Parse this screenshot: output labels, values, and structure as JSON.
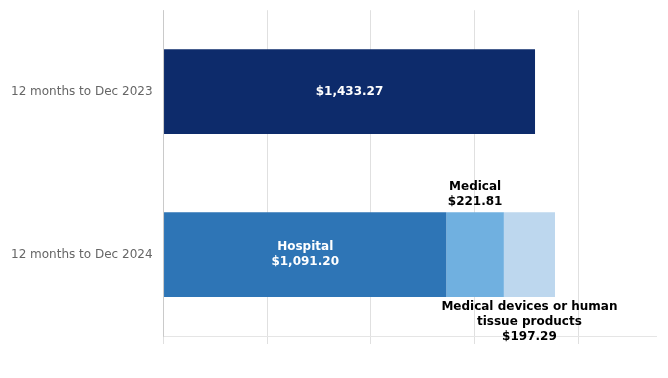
{
  "chart_data": {
    "type": "bar",
    "orientation": "horizontal",
    "stacked": true,
    "categories": [
      "12 months to Dec 2024",
      "12 months to Dec 2023"
    ],
    "series": [
      {
        "color": "#0d2b6b",
        "values": [
          null,
          1433.27
        ],
        "value_labels": [
          null,
          "$1,433.27"
        ]
      },
      {
        "color": "#2e75b6",
        "values": [
          1091.2,
          null
        ],
        "value_labels": [
          "Hospital\n$1,091.20",
          null
        ]
      },
      {
        "color": "#70b0e0",
        "values": [
          221.81,
          null
        ],
        "value_labels": [
          "Medical\n$221.81",
          null
        ]
      },
      {
        "color": "#bdd7ee",
        "values": [
          197.29,
          null
        ],
        "value_labels": [
          "Medical devices or human\ntissue products\n$197.29",
          null
        ]
      }
    ],
    "xlim": [
      0,
      1900
    ],
    "xticks": [
      0,
      400,
      800,
      1200,
      1600
    ],
    "grid": true,
    "tick_labels": "y"
  }
}
